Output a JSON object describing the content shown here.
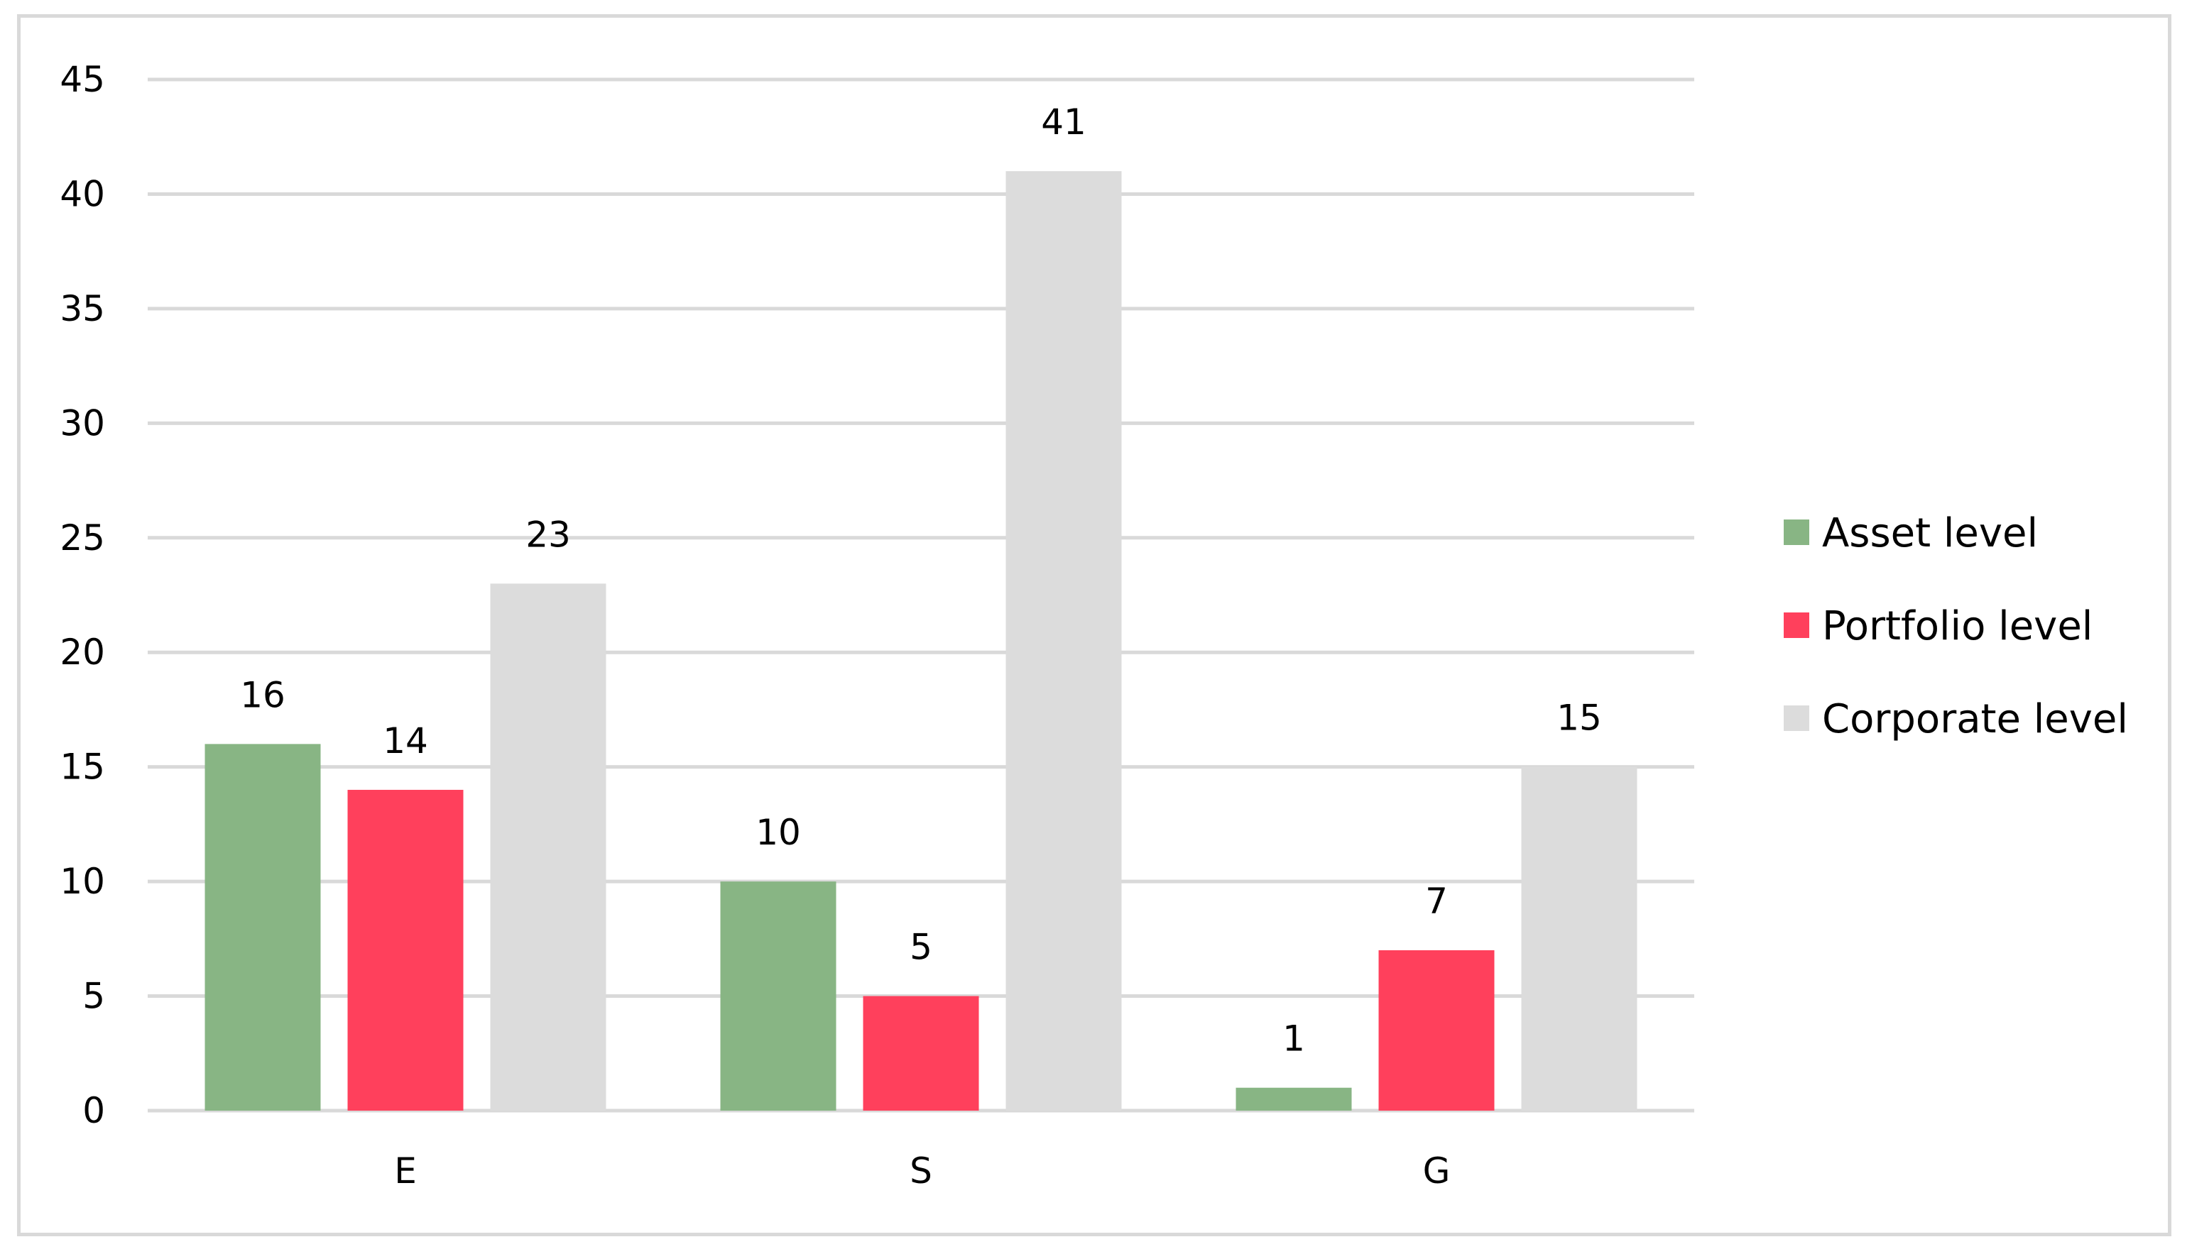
{
  "chart_data": {
    "type": "bar",
    "title": "",
    "xlabel": "",
    "ylabel": "",
    "categories": [
      "E",
      "S",
      "G"
    ],
    "series": [
      {
        "name": "Asset level",
        "values": [
          16,
          10,
          1
        ],
        "color": "#88b584"
      },
      {
        "name": "Portfolio level",
        "values": [
          14,
          5,
          7
        ],
        "color": "#ff405c"
      },
      {
        "name": "Corporate level",
        "values": [
          23,
          41,
          15
        ],
        "color": "#dcdcdc"
      }
    ],
    "ylim": [
      0,
      45
    ],
    "yticks": [
      0,
      5,
      10,
      15,
      20,
      25,
      30,
      35,
      40,
      45
    ],
    "grid": true,
    "gridline_color": "#d9d9d9",
    "legend_position": "right",
    "data_labels": true
  }
}
